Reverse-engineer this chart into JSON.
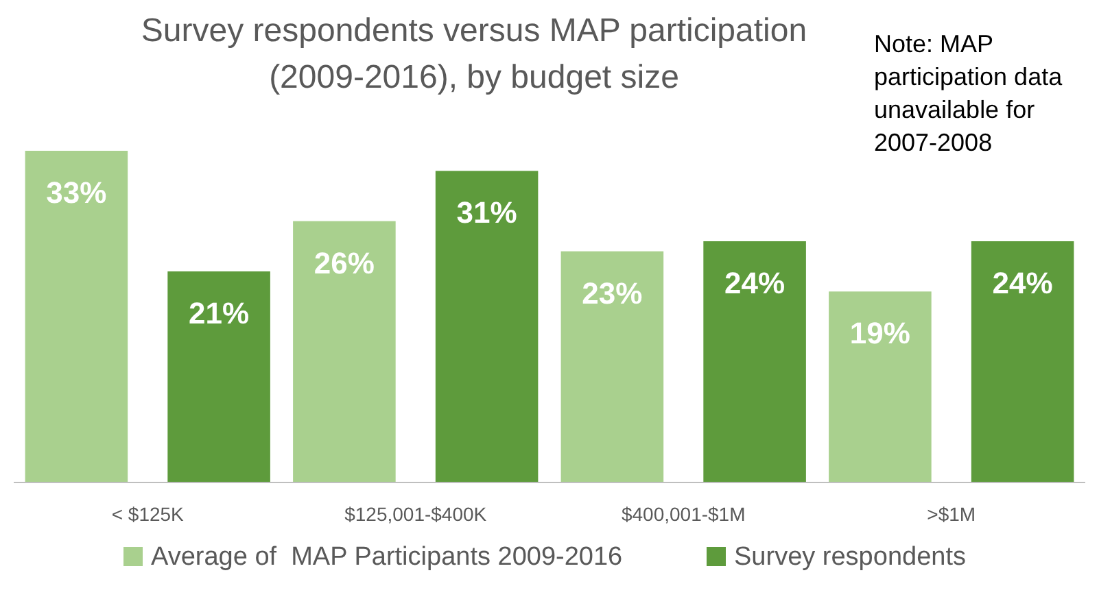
{
  "chart_data": {
    "type": "bar",
    "title": "Survey respondents versus MAP participation\n(2009-2016), by budget size",
    "annotations": [
      "Note: MAP\nparticipation data\nunavailable for\n2007-2008"
    ],
    "categories": [
      "< $125K",
      "$125,001-$400K",
      "$400,001-$1M",
      ">$1M"
    ],
    "series": [
      {
        "name": "Average of  MAP Participants 2009-2016",
        "color": "#a9d08e",
        "values": [
          33,
          26,
          23,
          19
        ],
        "value_labels": [
          "33%",
          "26%",
          "23%",
          "19%"
        ]
      },
      {
        "name": "Survey respondents",
        "color": "#5e9b3c",
        "values": [
          21,
          31,
          24,
          24
        ],
        "value_labels": [
          "21%",
          "31%",
          "24%",
          "24%"
        ]
      }
    ],
    "legend": "bottom",
    "grid": false
  }
}
